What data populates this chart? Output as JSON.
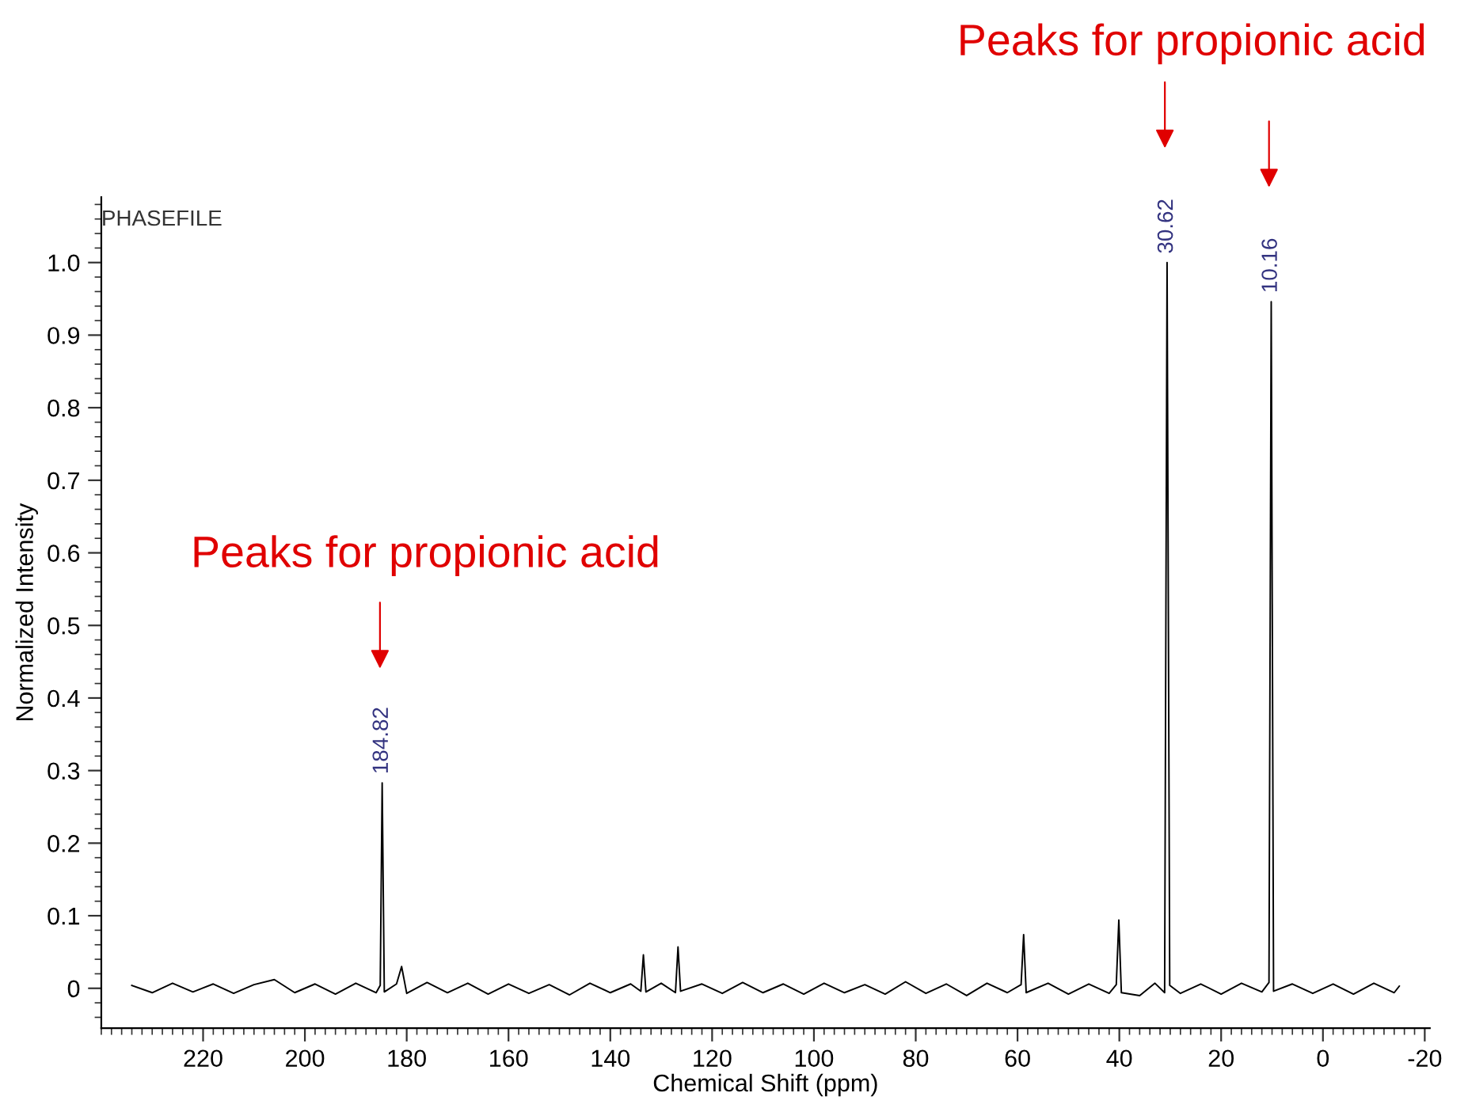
{
  "chart_data": {
    "type": "line",
    "xlabel": "Chemical Shift (ppm)",
    "ylabel": "Normalized Intensity",
    "annotations": [
      "PHASEFILE",
      "Peaks for propionic acid",
      "Peaks for propionic acid",
      {
        "text": "184.82",
        "x": 184.82,
        "y": 0.283
      },
      {
        "text": "30.62",
        "x": 30.62,
        "y": 1.0
      },
      {
        "text": "10.16",
        "x": 10.16,
        "y": 0.946
      }
    ],
    "x": [
      234,
      230,
      226,
      222,
      218,
      214,
      210,
      206,
      202,
      198,
      194,
      190,
      186,
      185.2,
      184.82,
      184.4,
      182,
      181,
      180,
      176,
      172,
      168,
      164,
      160,
      156,
      152,
      148,
      144,
      140,
      136,
      134,
      133.5,
      133,
      130,
      127.2,
      126.7,
      126.2,
      122,
      118,
      114,
      110,
      106,
      102,
      98,
      94,
      90,
      86,
      82,
      78,
      74,
      70,
      66,
      62,
      59.3,
      58.8,
      58.3,
      54,
      50,
      46,
      42,
      40.6,
      40.1,
      39.6,
      36,
      33,
      31.1,
      30.62,
      30.1,
      28,
      24,
      20,
      16,
      12,
      10.6,
      10.16,
      9.7,
      6,
      2,
      -2,
      -6,
      -10,
      -14,
      -15
    ],
    "series": [
      {
        "color": "#000000",
        "values": [
          0.004,
          -0.006,
          0.007,
          -0.005,
          0.006,
          -0.007,
          0.005,
          0.012,
          -0.006,
          0.006,
          -0.008,
          0.007,
          -0.006,
          0.004,
          0.283,
          -0.005,
          0.006,
          0.03,
          -0.007,
          0.008,
          -0.006,
          0.007,
          -0.008,
          0.006,
          -0.007,
          0.005,
          -0.009,
          0.007,
          -0.006,
          0.006,
          -0.004,
          0.046,
          -0.005,
          0.007,
          -0.006,
          0.057,
          -0.004,
          0.006,
          -0.007,
          0.008,
          -0.006,
          0.006,
          -0.008,
          0.007,
          -0.006,
          0.005,
          -0.008,
          0.009,
          -0.007,
          0.006,
          -0.01,
          0.007,
          -0.006,
          0.005,
          0.074,
          -0.006,
          0.007,
          -0.008,
          0.006,
          -0.007,
          0.005,
          0.094,
          -0.006,
          -0.01,
          0.007,
          -0.006,
          1.0,
          0.004,
          -0.007,
          0.006,
          -0.008,
          0.007,
          -0.005,
          0.008,
          0.946,
          -0.004,
          0.006,
          -0.007,
          0.006,
          -0.008,
          0.007,
          -0.006,
          0.003
        ]
      }
    ],
    "xlim": [
      240,
      -21
    ],
    "ylim": [
      -0.055,
      1.09
    ],
    "xticks": [
      220,
      200,
      180,
      160,
      140,
      120,
      100,
      80,
      60,
      40,
      20,
      0,
      -20
    ],
    "yticks": [
      {
        "value": 0,
        "label": "0"
      },
      {
        "value": 0.1,
        "label": "0.1"
      },
      {
        "value": 0.2,
        "label": "0.2"
      },
      {
        "value": 0.3,
        "label": "0.3"
      },
      {
        "value": 0.4,
        "label": "0.4"
      },
      {
        "value": 0.5,
        "label": "0.5"
      },
      {
        "value": 0.6,
        "label": "0.6"
      },
      {
        "value": 0.7,
        "label": "0.7"
      },
      {
        "value": 0.8,
        "label": "0.8"
      },
      {
        "value": 0.9,
        "label": "0.9"
      },
      {
        "value": 1.0,
        "label": "1.0"
      }
    ],
    "grid": false,
    "legend": false,
    "marker": "none",
    "line_style": "solid"
  }
}
